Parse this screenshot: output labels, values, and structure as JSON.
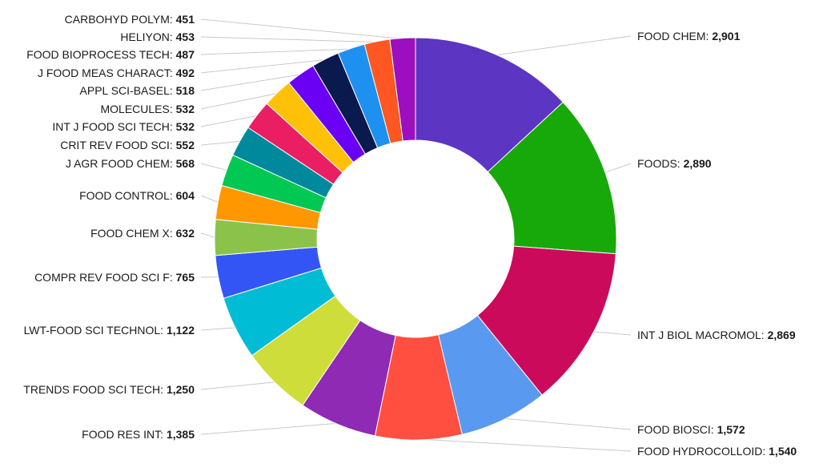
{
  "chart_data": {
    "type": "pie",
    "style": "donut",
    "slices": [
      {
        "label": "FOOD CHEM",
        "value": 2901,
        "display": "2,901",
        "color": "#5c35c2",
        "side": "right"
      },
      {
        "label": "FOODS",
        "value": 2890,
        "display": "2,890",
        "color": "#17a80a",
        "side": "right"
      },
      {
        "label": "INT J BIOL MACROMOL",
        "value": 2869,
        "display": "2,869",
        "color": "#cc0a5c",
        "side": "right"
      },
      {
        "label": "FOOD BIOSCI",
        "value": 1572,
        "display": "1,572",
        "color": "#5a99f0",
        "side": "right"
      },
      {
        "label": "FOOD HYDROCOLLOID",
        "value": 1540,
        "display": "1,540",
        "color": "#ff4f40",
        "side": "right"
      },
      {
        "label": "FOOD RES INT",
        "value": 1385,
        "display": "1,385",
        "color": "#8f2ab5",
        "side": "left"
      },
      {
        "label": "TRENDS FOOD SCI TECH",
        "value": 1250,
        "display": "1,250",
        "color": "#cfdd3a",
        "side": "left"
      },
      {
        "label": "LWT-FOOD SCI TECHNOL",
        "value": 1122,
        "display": "1,122",
        "color": "#00bcd4",
        "side": "left"
      },
      {
        "label": "COMPR REV FOOD SCI F",
        "value": 765,
        "display": "765",
        "color": "#3455f5",
        "side": "left"
      },
      {
        "label": "FOOD CHEM X",
        "value": 632,
        "display": "632",
        "color": "#8bc34a",
        "side": "left"
      },
      {
        "label": "FOOD CONTROL",
        "value": 604,
        "display": "604",
        "color": "#ff9800",
        "side": "left"
      },
      {
        "label": "J AGR FOOD CHEM",
        "value": 568,
        "display": "568",
        "color": "#00c853",
        "side": "left"
      },
      {
        "label": "CRIT REV FOOD SCI",
        "value": 552,
        "display": "552",
        "color": "#00899c",
        "side": "left"
      },
      {
        "label": "INT J FOOD SCI TECH",
        "value": 532,
        "display": "532",
        "color": "#e91e63",
        "side": "left"
      },
      {
        "label": "MOLECULES",
        "value": 532,
        "display": "532",
        "color": "#ffc107",
        "side": "left"
      },
      {
        "label": "APPL SCI-BASEL",
        "value": 518,
        "display": "518",
        "color": "#6a00f4",
        "side": "left"
      },
      {
        "label": "J FOOD MEAS CHARACT",
        "value": 492,
        "display": "492",
        "color": "#0a1a4f",
        "side": "left"
      },
      {
        "label": "FOOD BIOPROCESS TECH",
        "value": 487,
        "display": "487",
        "color": "#1e90f0",
        "side": "left"
      },
      {
        "label": "HELIYON",
        "value": 453,
        "display": "453",
        "color": "#ff5722",
        "side": "left"
      },
      {
        "label": "CARBOHYD POLYM",
        "value": 451,
        "display": "451",
        "color": "#9c0fbf",
        "side": "left"
      }
    ]
  }
}
